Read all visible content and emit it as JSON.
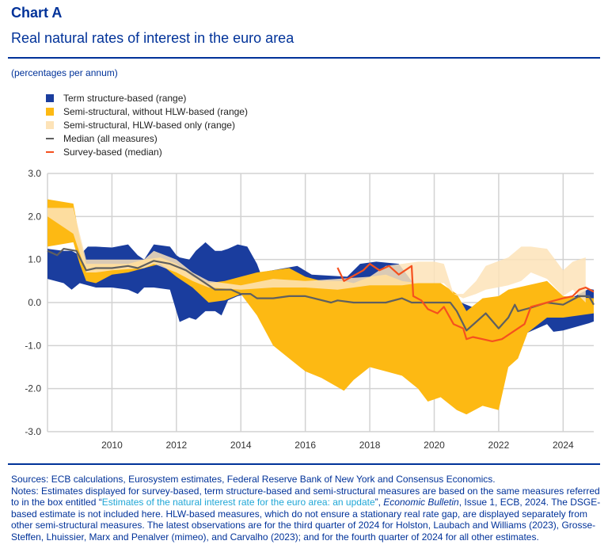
{
  "header": {
    "title": "Chart A",
    "subtitle": "Real natural rates of interest in the euro area",
    "unit": "(percentages per annum)"
  },
  "legend": [
    {
      "label": "Term structure-based (range)",
      "color": "#1a3d9e",
      "kind": "area"
    },
    {
      "label": "Semi-structural, without HLW-based (range)",
      "color": "#fdb913",
      "kind": "area"
    },
    {
      "label": "Semi-structural, HLW-based only (range)",
      "color": "#fde3b8",
      "kind": "area"
    },
    {
      "label": "Median (all measures)",
      "color": "#5f5f5f",
      "kind": "line"
    },
    {
      "label": "Survey-based (median)",
      "color": "#f5501e",
      "kind": "line"
    }
  ],
  "chart_data": {
    "type": "area",
    "xlim": [
      2008.0,
      2024.95
    ],
    "ylim": [
      -3.0,
      3.0
    ],
    "x_ticks": [
      "2010",
      "2012",
      "2014",
      "2016",
      "2018",
      "2020",
      "2022",
      "2024"
    ],
    "y_ticks": [
      "3.0",
      "2.0",
      "1.0",
      "0.0",
      "-1.0",
      "-2.0",
      "-3.0"
    ],
    "grid": true,
    "legend_position": "top-left",
    "bands": [
      {
        "name": "Term structure-based (range)",
        "color": "#1a3d9e",
        "x": [
          2008.0,
          2008.5,
          2008.75,
          2009.0,
          2009.25,
          2009.5,
          2010.0,
          2010.5,
          2010.8,
          2011.0,
          2011.3,
          2011.8,
          2012.0,
          2012.1,
          2012.4,
          2012.6,
          2012.9,
          2013.2,
          2013.4,
          2013.6,
          2013.9,
          2014.2,
          2014.5,
          2014.6,
          2015.75,
          2016.2,
          2017.3,
          2017.7,
          2018.2,
          2018.9,
          2019.0,
          2019.5,
          2020.5,
          2021.5,
          2022.5,
          2022.9,
          2023.5,
          2023.7,
          2024.0,
          2024.8,
          2024.95
        ],
        "upper": [
          1.25,
          1.2,
          1.2,
          1.1,
          1.3,
          1.3,
          1.28,
          1.35,
          1.1,
          1.0,
          1.35,
          1.3,
          1.1,
          1.05,
          1.0,
          1.2,
          1.4,
          1.2,
          1.2,
          1.25,
          1.35,
          1.3,
          0.9,
          0.7,
          0.85,
          0.65,
          0.6,
          0.9,
          0.95,
          0.9,
          0.8,
          0.3,
          0.1,
          -0.2,
          -0.2,
          -0.2,
          0.1,
          0.1,
          0.0,
          0.32,
          0.3
        ],
        "lower": [
          0.55,
          0.45,
          0.3,
          0.45,
          0.4,
          0.35,
          0.35,
          0.3,
          0.2,
          0.35,
          0.35,
          0.3,
          -0.2,
          -0.45,
          -0.35,
          -0.4,
          -0.2,
          -0.2,
          -0.3,
          0.05,
          0.15,
          0.2,
          0.3,
          0.3,
          0.3,
          0.3,
          0.3,
          0.3,
          0.3,
          0.3,
          0.3,
          0.0,
          -0.3,
          -0.5,
          -0.6,
          -0.7,
          -0.5,
          -0.68,
          -0.65,
          -0.48,
          -0.44
        ]
      },
      {
        "name": "Semi-structural, without HLW-based (range)",
        "color": "#fdb913",
        "x": [
          2008.0,
          2008.8,
          2009.0,
          2009.2,
          2009.5,
          2010.0,
          2010.5,
          2011.0,
          2011.5,
          2012.0,
          2012.5,
          2013.0,
          2013.5,
          2014.0,
          2014.5,
          2015.0,
          2015.5,
          2016.0,
          2016.5,
          2017.2,
          2017.5,
          2018.0,
          2018.5,
          2019.0,
          2019.5,
          2019.8,
          2020.2,
          2020.7,
          2021.0,
          2021.5,
          2022.0,
          2022.3,
          2022.6,
          2022.9,
          2023.5,
          2024.0,
          2024.95
        ],
        "upper": [
          2.4,
          2.3,
          1.5,
          0.9,
          0.9,
          0.9,
          0.9,
          1.0,
          1.05,
          0.9,
          0.6,
          0.45,
          0.5,
          0.6,
          0.7,
          0.75,
          0.8,
          0.6,
          0.5,
          0.5,
          0.45,
          0.6,
          0.65,
          0.5,
          0.45,
          0.45,
          0.45,
          0.2,
          -0.2,
          0.1,
          0.15,
          0.3,
          0.35,
          0.4,
          0.5,
          0.15,
          0.1
        ],
        "lower": [
          1.3,
          1.4,
          0.9,
          0.5,
          0.45,
          0.65,
          0.7,
          0.8,
          0.9,
          0.6,
          0.35,
          0.0,
          0.05,
          0.2,
          -0.3,
          -1.0,
          -1.3,
          -1.6,
          -1.75,
          -2.05,
          -1.8,
          -1.5,
          -1.6,
          -1.7,
          -2.0,
          -2.3,
          -2.2,
          -2.5,
          -2.6,
          -2.4,
          -2.5,
          -1.5,
          -1.3,
          -0.7,
          -0.35,
          -0.35,
          -0.25
        ]
      },
      {
        "name": "Semi-structural, HLW-based only (range)",
        "color": "#fde3b8",
        "x": [
          2008.0,
          2008.8,
          2009.2,
          2009.5,
          2010.0,
          2011.0,
          2011.3,
          2012.0,
          2012.5,
          2013.0,
          2014.0,
          2015.0,
          2016.0,
          2017.0,
          2018.0,
          2018.5,
          2019.0,
          2019.5,
          2020.0,
          2020.3,
          2020.6,
          2020.9,
          2021.3,
          2021.6,
          2022.3,
          2022.7,
          2023.0,
          2023.5,
          2024.0,
          2024.3,
          2024.7
        ],
        "upper": [
          2.2,
          2.2,
          1.0,
          1.0,
          1.0,
          1.0,
          1.2,
          1.0,
          0.7,
          0.5,
          0.4,
          0.55,
          0.5,
          0.55,
          0.6,
          0.85,
          0.9,
          0.95,
          0.95,
          0.9,
          0.2,
          0.2,
          0.5,
          0.85,
          1.05,
          1.3,
          1.3,
          1.25,
          0.75,
          0.95,
          1.05
        ],
        "lower": [
          2.0,
          1.6,
          0.7,
          0.7,
          0.75,
          0.8,
          0.9,
          0.7,
          0.5,
          0.35,
          0.3,
          0.35,
          0.35,
          0.3,
          0.4,
          0.4,
          0.4,
          0.45,
          0.45,
          0.45,
          0.2,
          0.1,
          0.2,
          0.3,
          0.4,
          0.5,
          0.7,
          0.55,
          0.15,
          0.3,
          0.0
        ]
      }
    ],
    "series": [
      {
        "name": "Median (all measures)",
        "color": "#5f5f5f",
        "x": [
          2008.0,
          2008.3,
          2008.5,
          2008.9,
          2009.2,
          2009.5,
          2010.0,
          2010.5,
          2010.8,
          2011.3,
          2011.8,
          2012.3,
          2012.8,
          2013.2,
          2013.7,
          2014.0,
          2014.3,
          2014.5,
          2015.0,
          2015.5,
          2016.0,
          2016.8,
          2017.0,
          2017.5,
          2018.0,
          2018.5,
          2019.0,
          2019.3,
          2020.0,
          2020.5,
          2020.7,
          2021.0,
          2021.3,
          2021.6,
          2022.0,
          2022.3,
          2022.5,
          2022.6,
          2023.0,
          2023.5,
          2024.0,
          2024.5,
          2024.8,
          2024.95
        ],
        "y": [
          1.2,
          1.1,
          1.25,
          1.2,
          0.75,
          0.8,
          0.8,
          0.85,
          0.8,
          0.97,
          0.9,
          0.75,
          0.5,
          0.3,
          0.3,
          0.2,
          0.2,
          0.1,
          0.1,
          0.15,
          0.15,
          0.0,
          0.05,
          0.0,
          0.0,
          0.0,
          0.1,
          0.0,
          0.0,
          0.0,
          -0.2,
          -0.65,
          -0.45,
          -0.25,
          -0.6,
          -0.35,
          -0.05,
          -0.2,
          -0.12,
          0.0,
          -0.05,
          0.15,
          0.15,
          -0.05
        ]
      },
      {
        "name": "Survey-based (median)",
        "color": "#f5501e",
        "x": [
          2017.0,
          2017.2,
          2017.8,
          2018.0,
          2018.3,
          2018.6,
          2018.9,
          2019.3,
          2019.35,
          2019.6,
          2019.8,
          2020.1,
          2020.3,
          2020.6,
          2020.9,
          2021.0,
          2021.2,
          2021.5,
          2021.8,
          2022.1,
          2022.5,
          2022.8,
          2023.0,
          2023.5,
          2024.0,
          2024.3,
          2024.5,
          2024.7,
          2024.95
        ],
        "y": [
          0.81,
          0.5,
          0.75,
          0.9,
          0.75,
          0.85,
          0.65,
          0.85,
          0.15,
          0.05,
          -0.15,
          -0.25,
          -0.1,
          -0.5,
          -0.6,
          -0.85,
          -0.8,
          -0.85,
          -0.9,
          -0.85,
          -0.65,
          -0.5,
          -0.1,
          0.0,
          0.1,
          0.15,
          0.3,
          0.35,
          0.25
        ]
      }
    ]
  },
  "notes": {
    "sources": "Sources: ECB calculations, Eurosystem estimates, Federal Reserve Bank of New York and Consensus Economics.",
    "notes_part1": "Notes: Estimates displayed for survey-based, term structure-based and semi-structural measures are based on the same measures referred to in the box entitled “",
    "link_text": "Estimates of the natural interest rate for the euro area: an update",
    "notes_part2": "”, ",
    "publication": "Economic Bulletin",
    "notes_part3": ", Issue 1, ECB, 2024. The DSGE-based estimate is not included here. HLW-based measures, which do not ensure a stationary real rate gap, are displayed separately from other semi-structural measures. The latest observations are for the third quarter of 2024 for Holston, Laubach and Williams (2023), Grosse-Steffen, Lhuissier, Marx and Penalver (mimeo), and Carvalho (2023); and for the fourth quarter of 2024 for all other estimates."
  }
}
